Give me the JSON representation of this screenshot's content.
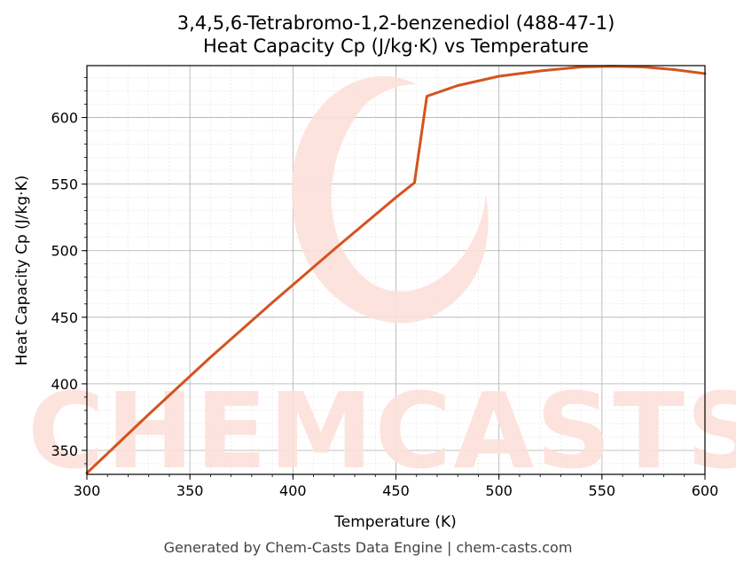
{
  "chart_data": {
    "type": "line",
    "title": "3,4,5,6-Tetrabromo-1,2-benzenediol (488-47-1)",
    "subtitle": "Heat Capacity Cp (J/kg·K) vs Temperature",
    "xlabel": "Temperature (K)",
    "ylabel": "Heat Capacity Cp (J/kg·K)",
    "xlim": [
      300,
      600
    ],
    "ylim": [
      332,
      639
    ],
    "xticks": [
      300,
      350,
      400,
      450,
      500,
      550,
      600
    ],
    "yticks": [
      350,
      400,
      450,
      500,
      550,
      600
    ],
    "grid": true,
    "series": [
      {
        "color": "#d4541f",
        "x": [
          300,
          330,
          360,
          390,
          420,
          450,
          459,
          465,
          480,
          500,
          520,
          540,
          555,
          570,
          585,
          600
        ],
        "y": [
          333,
          377,
          420,
          461,
          501,
          540,
          551,
          616,
          624,
          631,
          635,
          638,
          638.5,
          638,
          636,
          633
        ]
      }
    ]
  },
  "watermark": "CHEMCASTS",
  "footer": "Generated by Chem-Casts Data Engine | chem-casts.com"
}
